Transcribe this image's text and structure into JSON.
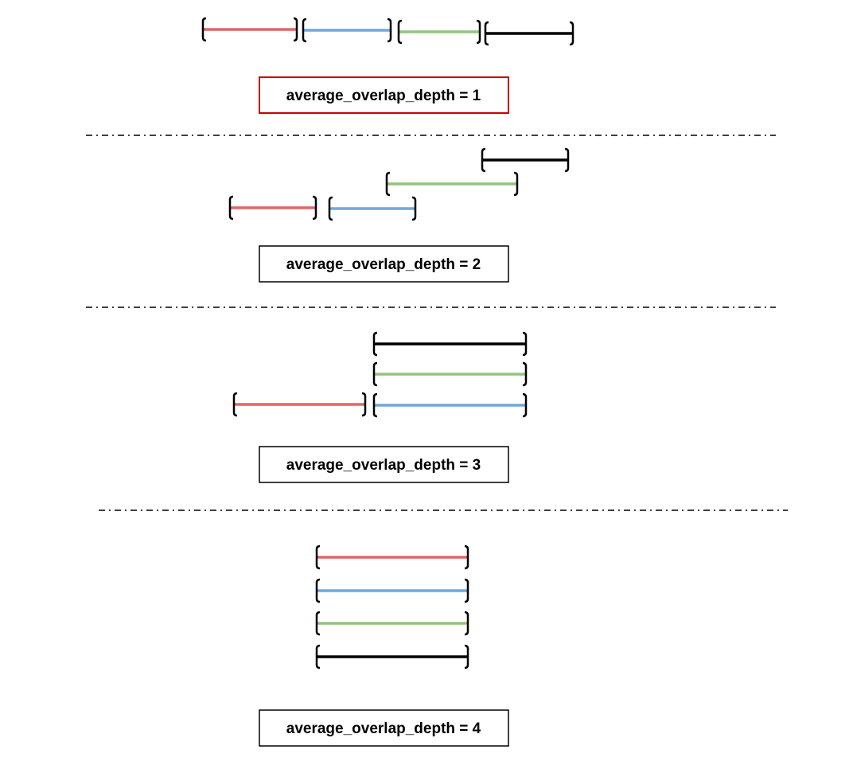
{
  "colors": {
    "red": "#e06666",
    "blue": "#6fa8dc",
    "green": "#93c47d",
    "black": "#000000",
    "highlight_border": "#cc0000",
    "box_border": "#000000",
    "separator": "#000000"
  },
  "panels": [
    {
      "label": "average_overlap_depth = 1",
      "highlighted": true,
      "intervals": [
        {
          "color": "red",
          "bracket_open": "[",
          "bracket_close": "]"
        },
        {
          "color": "blue",
          "bracket_open": "[",
          "bracket_close": "]"
        },
        {
          "color": "green",
          "bracket_open": "[",
          "bracket_close": "]"
        },
        {
          "color": "black",
          "bracket_open": "[",
          "bracket_close": "]"
        }
      ]
    },
    {
      "label": "average_overlap_depth = 2",
      "highlighted": false,
      "intervals": [
        {
          "color": "black",
          "bracket_open": "[",
          "bracket_close": "]"
        },
        {
          "color": "green",
          "bracket_open": "[",
          "bracket_close": "]"
        },
        {
          "color": "red",
          "bracket_open": "[",
          "bracket_close": "]"
        },
        {
          "color": "blue",
          "bracket_open": "[",
          "bracket_close": "]"
        }
      ]
    },
    {
      "label": "average_overlap_depth = 3",
      "highlighted": false,
      "intervals": [
        {
          "color": "black",
          "bracket_open": "[",
          "bracket_close": "]"
        },
        {
          "color": "green",
          "bracket_open": "[",
          "bracket_close": "]"
        },
        {
          "color": "red",
          "bracket_open": "[",
          "bracket_close": "]"
        },
        {
          "color": "blue",
          "bracket_open": "[",
          "bracket_close": "]"
        }
      ]
    },
    {
      "label": "average_overlap_depth = 4",
      "highlighted": false,
      "intervals": [
        {
          "color": "red",
          "bracket_open": "[",
          "bracket_close": "]"
        },
        {
          "color": "blue",
          "bracket_open": "[",
          "bracket_close": "]"
        },
        {
          "color": "green",
          "bracket_open": "[",
          "bracket_close": "]"
        },
        {
          "color": "black",
          "bracket_open": "[",
          "bracket_close": "]"
        }
      ]
    }
  ],
  "separator_style": "dash-dot"
}
